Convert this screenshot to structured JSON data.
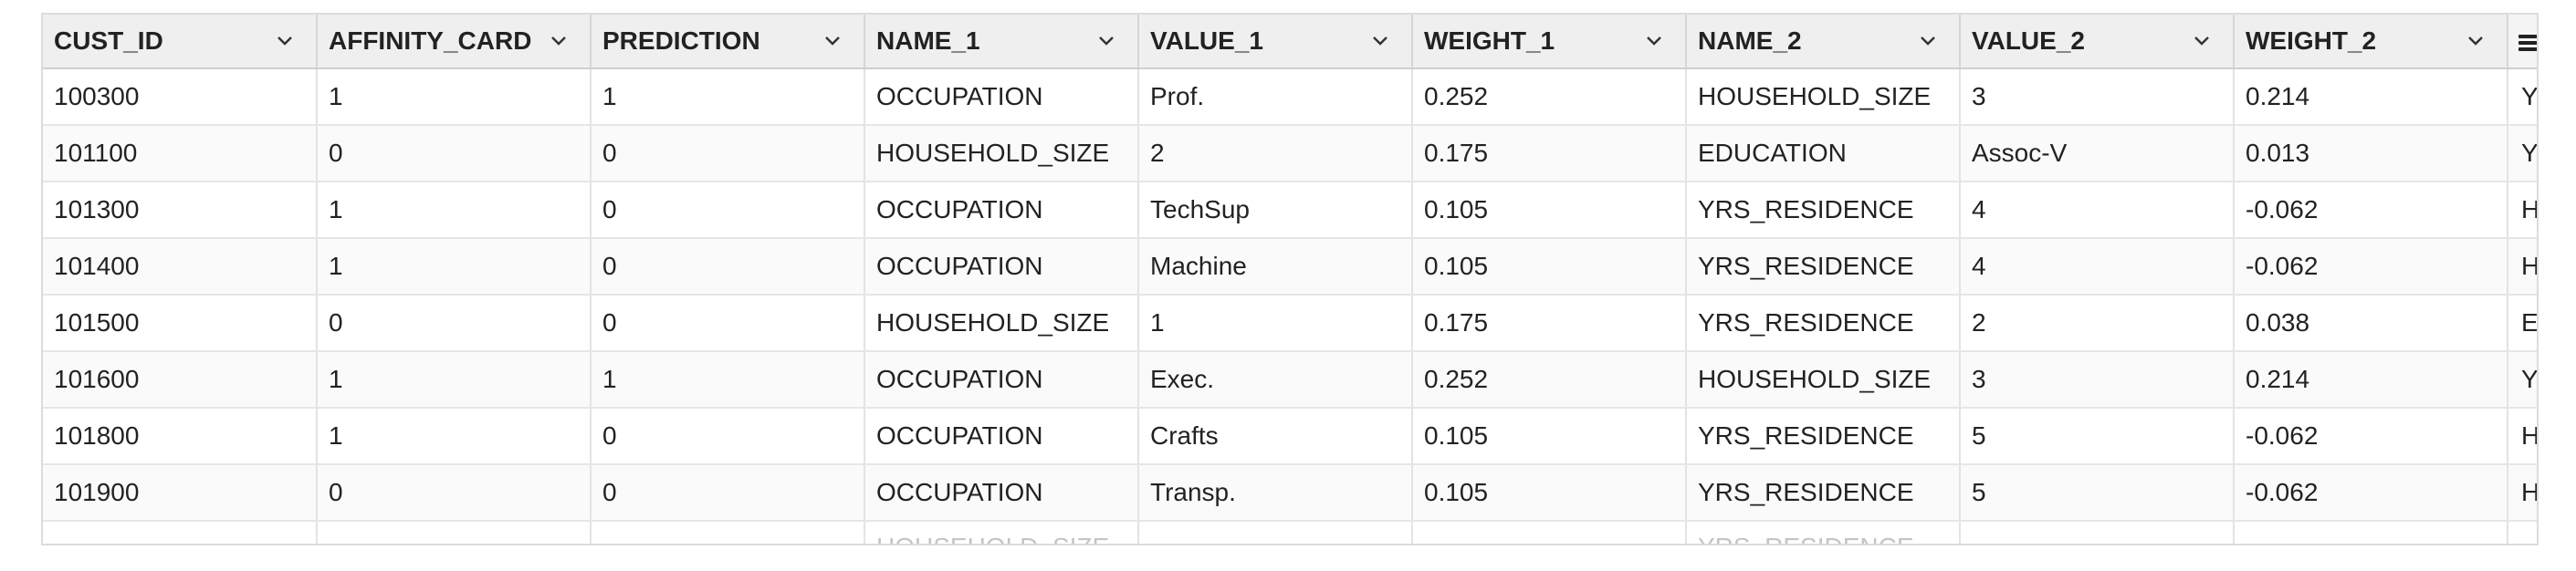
{
  "table": {
    "columns": [
      "CUST_ID",
      "AFFINITY_CARD",
      "PREDICTION",
      "NAME_1",
      "VALUE_1",
      "WEIGHT_1",
      "NAME_2",
      "VALUE_2",
      "WEIGHT_2"
    ],
    "clipped_column_values": [
      "Y_",
      "YI",
      "H(",
      "H(",
      "EI",
      "Y_",
      "H(",
      "H("
    ],
    "rows": [
      [
        "100300",
        "1",
        "1",
        "OCCUPATION",
        "Prof.",
        "0.252",
        "HOUSEHOLD_SIZE",
        "3",
        "0.214"
      ],
      [
        "101100",
        "0",
        "0",
        "HOUSEHOLD_SIZE",
        "2",
        "0.175",
        "EDUCATION",
        "Assoc-V",
        "0.013"
      ],
      [
        "101300",
        "1",
        "0",
        "OCCUPATION",
        "TechSup",
        "0.105",
        "YRS_RESIDENCE",
        "4",
        "-0.062"
      ],
      [
        "101400",
        "1",
        "0",
        "OCCUPATION",
        "Machine",
        "0.105",
        "YRS_RESIDENCE",
        "4",
        "-0.062"
      ],
      [
        "101500",
        "0",
        "0",
        "HOUSEHOLD_SIZE",
        "1",
        "0.175",
        "YRS_RESIDENCE",
        "2",
        "0.038"
      ],
      [
        "101600",
        "1",
        "1",
        "OCCUPATION",
        "Exec.",
        "0.252",
        "HOUSEHOLD_SIZE",
        "3",
        "0.214"
      ],
      [
        "101800",
        "1",
        "0",
        "OCCUPATION",
        "Crafts",
        "0.105",
        "YRS_RESIDENCE",
        "5",
        "-0.062"
      ],
      [
        "101900",
        "0",
        "0",
        "OCCUPATION",
        "Transp.",
        "0.105",
        "YRS_RESIDENCE",
        "5",
        "-0.062"
      ]
    ],
    "partial_row": [
      "",
      "",
      "",
      "HOUSEHOLD_SIZE",
      "",
      "",
      "YRS_RESIDENCE",
      "",
      ""
    ]
  },
  "icons": {
    "column_sort": "chevron-down-icon",
    "column_menu": "hamburger-menu-icon"
  },
  "colors": {
    "header_bg": "#efefef",
    "grid_line": "#dcdcdc",
    "text": "#222222"
  }
}
